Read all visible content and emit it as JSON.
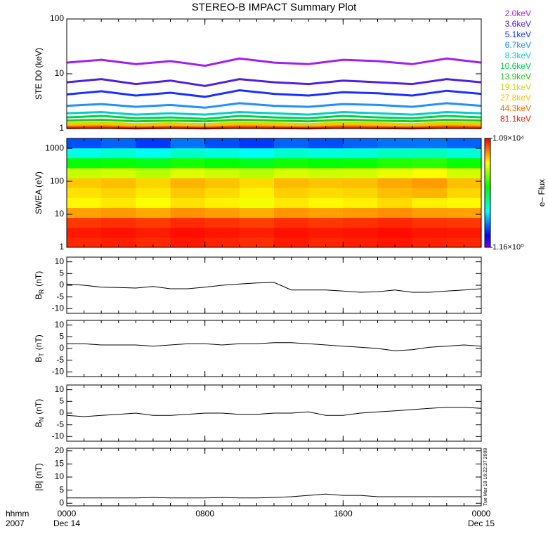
{
  "chart_data": [
    {
      "type": "line",
      "title": "STEREO-B IMPACT Summary Plot",
      "ylabel": "STE D0 (keV)",
      "log": true,
      "xlim": [
        0,
        24
      ],
      "xticks": [
        0,
        8,
        16,
        24
      ],
      "ylim": [
        1,
        100
      ],
      "yticks": [
        1,
        10,
        100
      ],
      "legend": "right-outside",
      "x": [
        0,
        2,
        4,
        6,
        8,
        10,
        12,
        14,
        16,
        18,
        20,
        22,
        24
      ],
      "series": [
        {
          "name": "2.0keV",
          "color": "#a020f0",
          "values": [
            16,
            18,
            15,
            17,
            14,
            19,
            16,
            15,
            18,
            17,
            15,
            19,
            16
          ]
        },
        {
          "name": "3.6keV",
          "color": "#5020e0",
          "values": [
            7,
            8,
            6.5,
            7.5,
            6,
            8,
            7,
            6.5,
            7.5,
            7,
            6.5,
            8,
            7
          ]
        },
        {
          "name": "5.1keV",
          "color": "#1a30ff",
          "values": [
            4.2,
            4.8,
            4,
            4.5,
            3.8,
            5,
            4.3,
            4,
            4.6,
            4.4,
            4,
            4.9,
            4.3
          ]
        },
        {
          "name": "6.7keV",
          "color": "#1e90ff",
          "values": [
            2.6,
            2.8,
            2.5,
            2.7,
            2.4,
            2.9,
            2.6,
            2.5,
            2.8,
            2.7,
            2.5,
            2.9,
            2.6
          ]
        },
        {
          "name": "8.3keV",
          "color": "#00d0c8",
          "values": [
            1.9,
            2,
            1.8,
            1.9,
            1.8,
            2,
            1.9,
            1.8,
            2,
            1.9,
            1.8,
            2,
            1.9
          ]
        },
        {
          "name": "10.6keV",
          "color": "#00d050",
          "values": [
            1.6,
            1.7,
            1.55,
            1.6,
            1.5,
            1.7,
            1.6,
            1.55,
            1.7,
            1.6,
            1.55,
            1.7,
            1.6
          ]
        },
        {
          "name": "13.9keV",
          "color": "#30c020",
          "values": [
            1.4,
            1.45,
            1.35,
            1.4,
            1.35,
            1.45,
            1.4,
            1.35,
            1.45,
            1.4,
            1.35,
            1.45,
            1.4
          ]
        },
        {
          "name": "19.1keV",
          "color": "#c8e000",
          "values": [
            1.25,
            1.3,
            1.2,
            1.25,
            1.2,
            1.3,
            1.25,
            1.2,
            1.3,
            1.25,
            1.2,
            1.3,
            1.25
          ]
        },
        {
          "name": "27.8keV",
          "color": "#ffc000",
          "values": [
            1.15,
            1.2,
            1.12,
            1.15,
            1.12,
            1.2,
            1.15,
            1.12,
            1.2,
            1.15,
            1.12,
            1.2,
            1.15
          ]
        },
        {
          "name": "44.3keV",
          "color": "#ff7000",
          "values": [
            1.08,
            1.1,
            1.06,
            1.08,
            1.06,
            1.1,
            1.08,
            1.06,
            1.1,
            1.08,
            1.06,
            1.1,
            1.08
          ]
        },
        {
          "name": "81.1keV",
          "color": "#e02000",
          "values": [
            1.02,
            1.04,
            1.01,
            1.03,
            1.01,
            1.04,
            1.02,
            1.01,
            1.04,
            1.02,
            1.01,
            1.04,
            1.02
          ]
        }
      ]
    },
    {
      "type": "heatmap",
      "ylabel": "SWEA (eV)",
      "log": true,
      "xlim": [
        0,
        24
      ],
      "xticks": [
        0,
        8,
        16,
        24
      ],
      "ylim": [
        1,
        2000
      ],
      "yticks": [
        1,
        10,
        100,
        1000
      ],
      "time_bins": [
        0,
        2,
        4,
        6,
        8,
        10,
        12,
        14,
        16,
        18,
        20,
        22,
        24
      ],
      "energy_bins": [
        1,
        2,
        4,
        8,
        16,
        32,
        64,
        128,
        256,
        512,
        1024,
        2000
      ],
      "z": [
        [
          8000,
          8500,
          7800,
          9000,
          8200,
          7600,
          8800,
          8000,
          8500,
          9200,
          8400,
          8000
        ],
        [
          9000,
          9500,
          8800,
          9800,
          9200,
          8600,
          9600,
          9000,
          9400,
          10000,
          9300,
          9000
        ],
        [
          7000,
          7500,
          6800,
          7800,
          7200,
          6600,
          7600,
          7000,
          7400,
          8000,
          7300,
          7000
        ],
        [
          3000,
          3200,
          2800,
          3400,
          3100,
          2700,
          3300,
          3000,
          3200,
          3500,
          3100,
          3000
        ],
        [
          1500,
          1700,
          1400,
          1800,
          1600,
          1300,
          1700,
          1500,
          1600,
          1900,
          1600,
          1500
        ],
        [
          1800,
          2000,
          1700,
          2200,
          1900,
          1600,
          2100,
          1900,
          2000,
          2400,
          2600,
          2000
        ],
        [
          2200,
          2400,
          2000,
          2600,
          2300,
          1900,
          2500,
          2300,
          2400,
          2800,
          3200,
          2400
        ],
        [
          900,
          1000,
          800,
          1100,
          950,
          800,
          1050,
          950,
          1000,
          1200,
          1400,
          1000
        ],
        [
          180,
          200,
          160,
          220,
          190,
          150,
          210,
          190,
          200,
          240,
          260,
          200
        ],
        [
          30,
          35,
          28,
          38,
          32,
          26,
          36,
          32,
          34,
          40,
          42,
          34
        ],
        [
          6,
          7,
          5,
          8,
          6,
          5,
          7,
          6,
          7,
          8,
          8,
          7
        ]
      ],
      "zlim": [
        1.16,
        10900
      ],
      "zticks": [
        {
          "value": 1.16,
          "label": "1.16×10⁰"
        },
        {
          "value": 10900,
          "label": "1.09×10⁴"
        }
      ],
      "colorbar_label": "e– Flux"
    },
    {
      "type": "line",
      "ylabel": "B",
      "ylabel_sub": "R",
      "ylabel_unit": "(nT)",
      "color": "#000000",
      "xlim": [
        0,
        24
      ],
      "xticks": [
        0,
        8,
        16,
        24
      ],
      "ylim": [
        -12,
        12
      ],
      "yticks": [
        -10,
        -5,
        0,
        5,
        10
      ],
      "x": [
        0,
        1,
        2,
        3,
        4,
        5,
        6,
        7,
        8,
        9,
        10,
        11,
        12,
        13,
        14,
        15,
        16,
        17,
        18,
        19,
        20,
        21,
        22,
        23,
        24
      ],
      "values": [
        0.5,
        0,
        -0.8,
        -1,
        -1.2,
        -0.5,
        -1.5,
        -1.5,
        -0.8,
        0,
        0.5,
        1,
        1.2,
        -2,
        -2,
        -2,
        -2.5,
        -3,
        -2.8,
        -2,
        -3,
        -3,
        -2.5,
        -2,
        -1.5
      ]
    },
    {
      "type": "line",
      "ylabel": "B",
      "ylabel_sub": "T",
      "ylabel_unit": "(nT)",
      "color": "#000000",
      "xlim": [
        0,
        24
      ],
      "xticks": [
        0,
        8,
        16,
        24
      ],
      "ylim": [
        -12,
        12
      ],
      "yticks": [
        -10,
        -5,
        0,
        5,
        10
      ],
      "x": [
        0,
        1,
        2,
        3,
        4,
        5,
        6,
        7,
        8,
        9,
        10,
        11,
        12,
        13,
        14,
        15,
        16,
        17,
        18,
        19,
        20,
        21,
        22,
        23,
        24
      ],
      "values": [
        2,
        2,
        1.5,
        1.5,
        1.5,
        1,
        1.5,
        2,
        2,
        1.5,
        2,
        2,
        2.5,
        2.5,
        2,
        1.5,
        1,
        0.5,
        0,
        -1,
        -0.5,
        0.5,
        1,
        1.5,
        1
      ]
    },
    {
      "type": "line",
      "ylabel": "B",
      "ylabel_sub": "N",
      "ylabel_unit": "(nT)",
      "color": "#000000",
      "xlim": [
        0,
        24
      ],
      "xticks": [
        0,
        8,
        16,
        24
      ],
      "ylim": [
        -12,
        12
      ],
      "yticks": [
        -10,
        -5,
        0,
        5,
        10
      ],
      "x": [
        0,
        1,
        2,
        3,
        4,
        5,
        6,
        7,
        8,
        9,
        10,
        11,
        12,
        13,
        14,
        15,
        16,
        17,
        18,
        19,
        20,
        21,
        22,
        23,
        24
      ],
      "values": [
        -1,
        -1.5,
        -1,
        -0.5,
        0,
        -1,
        -1,
        -0.5,
        0,
        0,
        -0.5,
        -0.5,
        0,
        0,
        0.5,
        -1,
        -1,
        0,
        0.5,
        1,
        1.5,
        2,
        2.5,
        2.5,
        2
      ]
    },
    {
      "type": "line",
      "ylabel": "|B| (nT)",
      "color": "#000000",
      "xlim": [
        0,
        24
      ],
      "ylim": [
        -1,
        21
      ],
      "yticks": [
        0,
        5,
        10,
        15,
        20
      ],
      "xticks": [
        {
          "value": 0,
          "label": "0000"
        },
        {
          "value": 8,
          "label": "0800"
        },
        {
          "value": 16,
          "label": "1600"
        },
        {
          "value": 24,
          "label": "0000"
        }
      ],
      "xtick_dates": [
        {
          "value": 0,
          "label": "Dec 14"
        },
        {
          "value": 24,
          "label": "Dec 15"
        }
      ],
      "x_row_labels": [
        "hhmm",
        "2007"
      ],
      "annotation": "Tue Mar 18 16:22:37 2008",
      "x": [
        0,
        1,
        2,
        3,
        4,
        5,
        6,
        7,
        8,
        9,
        10,
        11,
        12,
        13,
        14,
        15,
        16,
        17,
        18,
        19,
        20,
        21,
        22,
        23,
        24
      ],
      "values": [
        2,
        2,
        2,
        2,
        2,
        2.2,
        2,
        2,
        2,
        2.2,
        2,
        2,
        2.2,
        2.5,
        3,
        3.5,
        3,
        3,
        2.5,
        2.5,
        2.5,
        2.5,
        2.5,
        2.5,
        2.5
      ]
    }
  ]
}
